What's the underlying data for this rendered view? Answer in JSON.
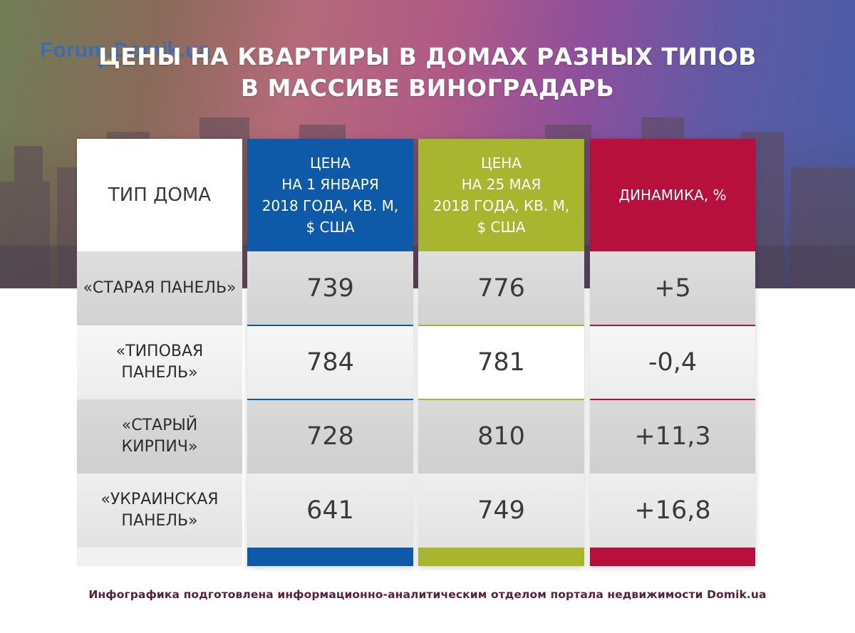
{
  "logo": "Forum.Domik.ua",
  "title_lines": [
    "ЦЕНЫ НА КВАРТИРЫ В ДОМАХ РАЗНЫХ ТИПОВ",
    "В МАССИВЕ ВИНОГРАДАРЬ"
  ],
  "colors": {
    "jan": "#0f5aa8",
    "may": "#a8b52e",
    "dynamics": "#b7103d"
  },
  "chart_data": {
    "type": "table",
    "title": "ЦЕНЫ НА КВАРТИРЫ В ДОМАХ РАЗНЫХ ТИПОВ В МАССИВЕ ВИНОГРАДАРЬ",
    "columns": [
      "ТИП ДОМА",
      "ЦЕНА НА 1 ЯНВАРЯ 2018 ГОДА, КВ. М, $ США",
      "ЦЕНА НА 25 МАЯ 2018 ГОДА, КВ. М, $ США",
      "ДИНАМИКА, %"
    ],
    "header_lines": {
      "type": [
        "ТИП ДОМА"
      ],
      "jan": [
        "ЦЕНА",
        "НА 1 ЯНВАРЯ",
        "2018 ГОДА, КВ. М,",
        "$ США"
      ],
      "may": [
        "ЦЕНА",
        "НА 25 МАЯ",
        "2018 ГОДА, КВ. М,",
        "$ США"
      ],
      "dynamics": [
        "ДИНАМИКА, %"
      ]
    },
    "rows": [
      {
        "type_lines": [
          "«СТАРАЯ ПАНЕЛЬ»"
        ],
        "jan": "739",
        "may": "776",
        "dynamics": "+5"
      },
      {
        "type_lines": [
          "«ТИПОВАЯ",
          "ПАНЕЛЬ»"
        ],
        "jan": "784",
        "may": "781",
        "dynamics": "-0,4"
      },
      {
        "type_lines": [
          "«СТАРЫЙ",
          "КИРПИЧ»"
        ],
        "jan": "728",
        "may": "810",
        "dynamics": "+11,3"
      },
      {
        "type_lines": [
          "«УКРАИНСКАЯ",
          "ПАНЕЛЬ»"
        ],
        "jan": "641",
        "may": "749",
        "dynamics": "+16,8"
      }
    ]
  },
  "credit": "Инфографика подготовлена информационно-аналитическим отделом портала недвижимости Domik.ua"
}
